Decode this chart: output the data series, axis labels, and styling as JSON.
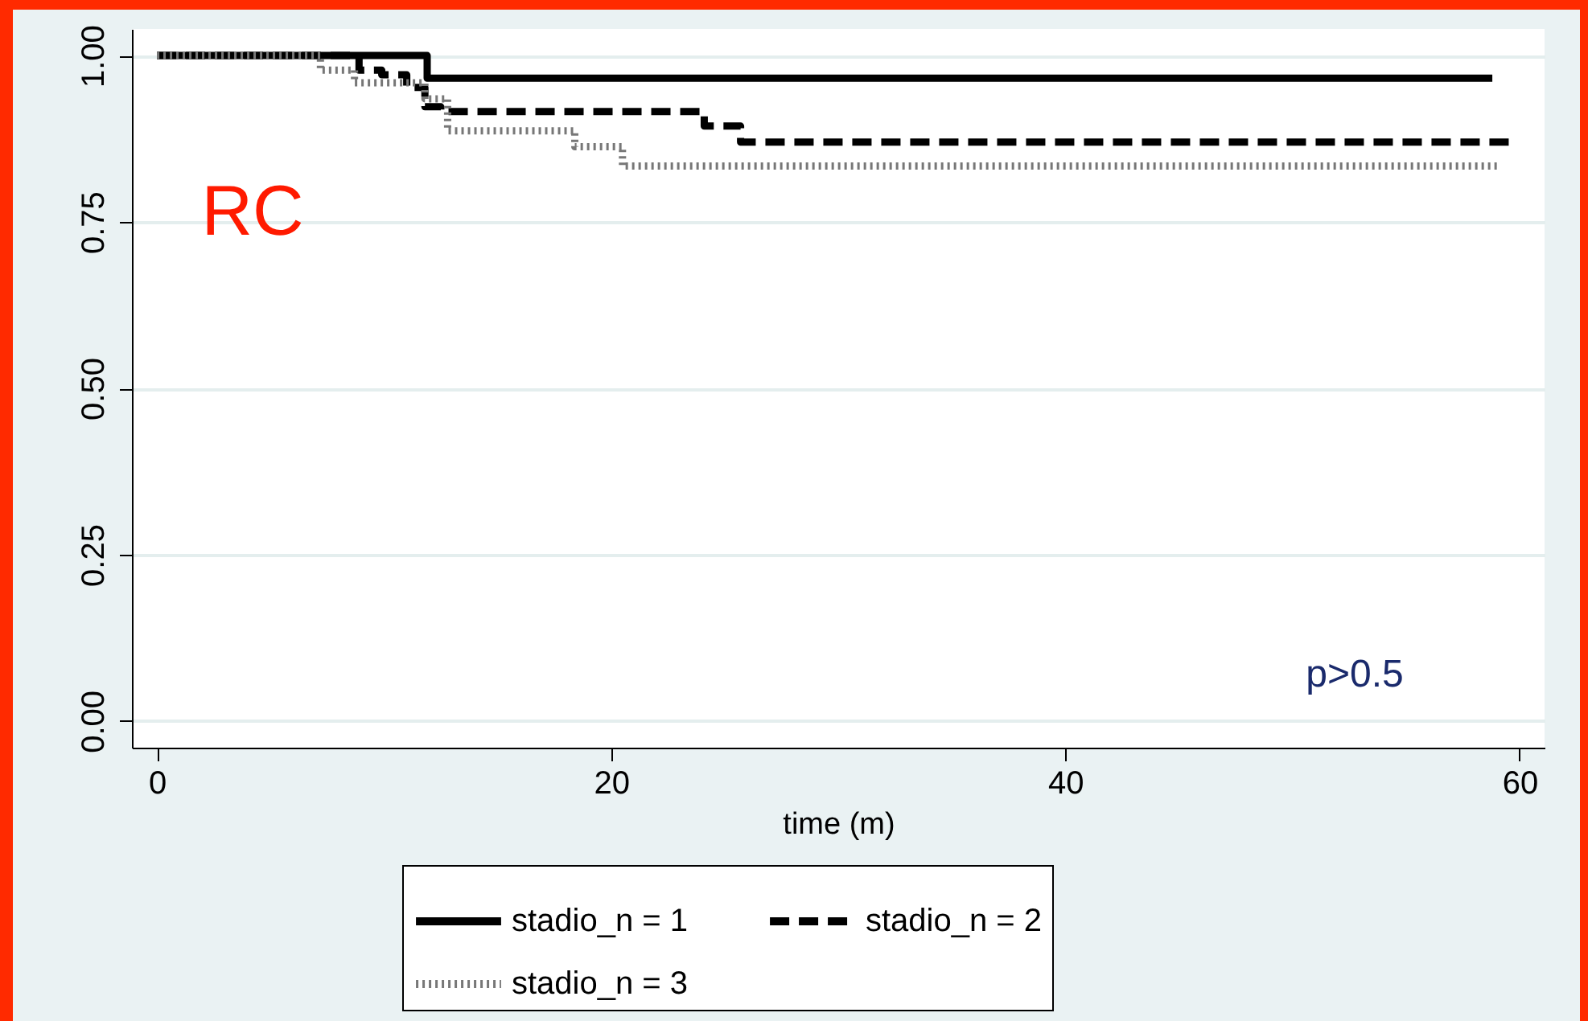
{
  "chart_data": {
    "type": "step",
    "xlabel": "time (m)",
    "xlim": [
      -1.1,
      61.1
    ],
    "xticks": [
      0,
      20,
      40,
      60
    ],
    "ylim": [
      -0.04,
      1.04
    ],
    "yticks": [
      {
        "value": 0,
        "label": "0.00"
      },
      {
        "value": 0.25,
        "label": "0.25"
      },
      {
        "value": 0.5,
        "label": "0.50"
      },
      {
        "value": 0.75,
        "label": "0.75"
      },
      {
        "value": 1,
        "label": "1.00"
      }
    ],
    "grid": "y",
    "legend": "bottom",
    "marker": "none",
    "annotations": [
      "RC",
      "p>0.5"
    ],
    "series": [
      {
        "name": "stadio_n = 1",
        "color": "#000000",
        "line_style": "solid",
        "x": [
          0,
          11.9,
          58.8
        ],
        "values": [
          1.0,
          0.966,
          0.966
        ]
      },
      {
        "name": "stadio_n = 2",
        "color": "#000000",
        "line_style": "dashed",
        "x": [
          0,
          8.9,
          9.9,
          11.0,
          11.8,
          12.5,
          24.1,
          25.7,
          59.7
        ],
        "values": [
          1.0,
          0.978,
          0.971,
          0.952,
          0.923,
          0.916,
          0.894,
          0.87,
          0.87
        ]
      },
      {
        "name": "stadio_n = 3",
        "color": "#777777",
        "line_style": "dotted",
        "x": [
          0,
          7.2,
          8.7,
          11.8,
          12.8,
          18.4,
          20.5,
          59.0
        ],
        "values": [
          1.0,
          0.978,
          0.959,
          0.935,
          0.887,
          0.863,
          0.834,
          0.834
        ]
      }
    ]
  }
}
